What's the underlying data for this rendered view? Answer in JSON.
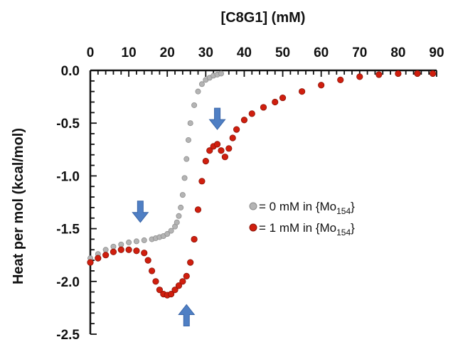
{
  "colors": {
    "series_0mM": "#b4b4b4",
    "series_1mM": "#d01e0e",
    "arrow": "#4f7fc4",
    "axis": "#111111"
  },
  "chart_data": {
    "type": "scatter",
    "title": "",
    "xlabel": "[C8G1] (mM)",
    "ylabel": "Heat per mol (kcal/mol)",
    "x_axis_position": "top",
    "xlim": [
      0,
      90
    ],
    "ylim": [
      -2.5,
      0.0
    ],
    "xticks": [
      "0",
      "10",
      "20",
      "30",
      "40",
      "50",
      "60",
      "70",
      "80",
      "90"
    ],
    "yticks": [
      "0.0",
      "-0.5",
      "-1.0",
      "-1.5",
      "-2.0",
      "-2.5"
    ],
    "grid": false,
    "legend_placement": "right-middle",
    "legend": {
      "row1": {
        "prefix": "= 0 mM in {Mo",
        "sub": "154",
        "suffix": "}"
      },
      "row2": {
        "prefix": "= 1 mM in {Mo",
        "sub": "154",
        "suffix": "}"
      }
    },
    "series": [
      {
        "name": "= 0 mM in {Mo154}",
        "color": "#b4b4b4",
        "x": [
          0,
          2,
          4,
          6,
          8,
          10,
          12,
          14,
          16,
          17,
          18,
          19,
          20,
          21,
          22,
          22.5,
          23,
          23.5,
          24,
          24.5,
          25,
          25.5,
          26,
          27,
          28,
          29,
          30,
          31,
          32,
          33,
          34
        ],
        "y": [
          -1.78,
          -1.74,
          -1.7,
          -1.67,
          -1.65,
          -1.63,
          -1.62,
          -1.61,
          -1.6,
          -1.59,
          -1.58,
          -1.57,
          -1.55,
          -1.52,
          -1.48,
          -1.44,
          -1.38,
          -1.3,
          -1.18,
          -1.02,
          -0.84,
          -0.66,
          -0.5,
          -0.33,
          -0.2,
          -0.13,
          -0.09,
          -0.07,
          -0.05,
          -0.04,
          -0.03
        ]
      },
      {
        "name": "= 1 mM in {Mo154}",
        "color": "#d01e0e",
        "x": [
          0,
          2,
          4,
          6,
          8,
          10,
          12,
          14,
          15,
          16,
          17,
          18,
          19,
          20,
          21,
          22,
          23,
          24,
          25,
          26,
          27,
          28,
          29,
          30,
          31,
          32,
          33,
          34,
          35,
          36,
          37,
          38,
          40,
          42,
          45,
          48,
          50,
          55,
          60,
          65,
          70,
          75,
          80,
          85,
          89
        ],
        "y": [
          -1.82,
          -1.78,
          -1.75,
          -1.72,
          -1.7,
          -1.7,
          -1.71,
          -1.73,
          -1.8,
          -1.9,
          -2.0,
          -2.08,
          -2.12,
          -2.13,
          -2.12,
          -2.08,
          -2.04,
          -2.0,
          -1.95,
          -1.82,
          -1.6,
          -1.32,
          -1.05,
          -0.86,
          -0.76,
          -0.72,
          -0.7,
          -0.76,
          -0.82,
          -0.74,
          -0.64,
          -0.56,
          -0.47,
          -0.41,
          -0.35,
          -0.3,
          -0.26,
          -0.2,
          -0.14,
          -0.09,
          -0.06,
          -0.04,
          -0.03,
          -0.03,
          -0.03
        ]
      }
    ],
    "annotations": [
      {
        "type": "down-arrow",
        "x": 13,
        "y": -1.44
      },
      {
        "type": "down-arrow",
        "x": 33,
        "y": -0.56
      },
      {
        "type": "up-arrow",
        "x": 25,
        "y": -2.22
      }
    ]
  }
}
